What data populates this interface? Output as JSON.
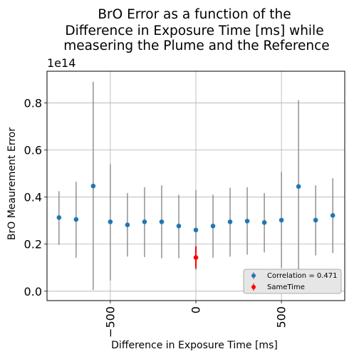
{
  "chart_data": {
    "type": "scatter",
    "title_lines": [
      "BrO Error as a function of the",
      "Difference in Exposure Time [ms] while",
      " measering the Plume and the Reference"
    ],
    "xlabel": "Difference in Exposure Time [ms]",
    "ylabel": "BrO Meaurement Error",
    "y_offset_text": "1e14",
    "xlim": [
      -870,
      870
    ],
    "ylim": [
      -0.04,
      0.935
    ],
    "x_ticks": [
      -500,
      0,
      500
    ],
    "x_tick_labels": [
      "−500",
      "0",
      "500"
    ],
    "y_ticks": [
      0.0,
      0.2,
      0.4,
      0.6,
      0.8
    ],
    "y_tick_labels": [
      "0.0",
      "0.2",
      "0.4",
      "0.6",
      "0.8"
    ],
    "grid": true,
    "legend_position": "lower-right",
    "series": [
      {
        "name": "Correlation = 0.471",
        "color": "#1f77b4",
        "errorbar_color": "#808080",
        "points": [
          {
            "x": -800,
            "y": 0.313,
            "ylow": 0.197,
            "yhigh": 0.425
          },
          {
            "x": -700,
            "y": 0.305,
            "ylow": 0.142,
            "yhigh": 0.465
          },
          {
            "x": -600,
            "y": 0.447,
            "ylow": 0.005,
            "yhigh": 0.89
          },
          {
            "x": -500,
            "y": 0.295,
            "ylow": 0.045,
            "yhigh": 0.54
          },
          {
            "x": -400,
            "y": 0.282,
            "ylow": 0.147,
            "yhigh": 0.417
          },
          {
            "x": -300,
            "y": 0.295,
            "ylow": 0.145,
            "yhigh": 0.442
          },
          {
            "x": -200,
            "y": 0.295,
            "ylow": 0.14,
            "yhigh": 0.45
          },
          {
            "x": -100,
            "y": 0.277,
            "ylow": 0.14,
            "yhigh": 0.41
          },
          {
            "x": 0,
            "y": 0.26,
            "ylow": 0.09,
            "yhigh": 0.43
          },
          {
            "x": 100,
            "y": 0.277,
            "ylow": 0.142,
            "yhigh": 0.41
          },
          {
            "x": 200,
            "y": 0.295,
            "ylow": 0.147,
            "yhigh": 0.44
          },
          {
            "x": 300,
            "y": 0.298,
            "ylow": 0.155,
            "yhigh": 0.442
          },
          {
            "x": 400,
            "y": 0.292,
            "ylow": 0.165,
            "yhigh": 0.417
          },
          {
            "x": 500,
            "y": 0.302,
            "ylow": 0.1,
            "yhigh": 0.507
          },
          {
            "x": 600,
            "y": 0.445,
            "ylow": 0.075,
            "yhigh": 0.812
          },
          {
            "x": 700,
            "y": 0.302,
            "ylow": 0.152,
            "yhigh": 0.45
          },
          {
            "x": 800,
            "y": 0.322,
            "ylow": 0.162,
            "yhigh": 0.48
          }
        ]
      },
      {
        "name": "SameTime",
        "color": "#ff0000",
        "errorbar_color": "#ff0000",
        "points": [
          {
            "x": 0,
            "y": 0.143,
            "ylow": 0.097,
            "yhigh": 0.19
          }
        ]
      }
    ]
  }
}
